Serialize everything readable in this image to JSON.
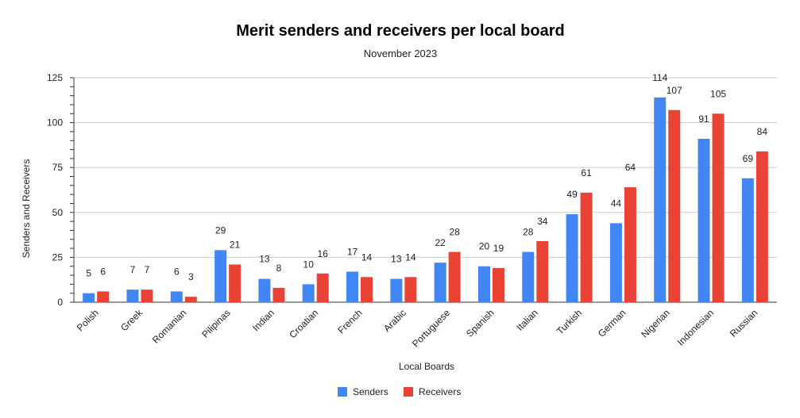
{
  "chart_data": {
    "type": "bar",
    "title": "Merit senders and receivers per local board",
    "subtitle": "November 2023",
    "xlabel": "Local Boards",
    "ylabel": "Senders and Receivers",
    "ylim": [
      0,
      125
    ],
    "yticks": [
      0,
      25,
      50,
      75,
      100,
      125
    ],
    "grid": true,
    "legend_position": "bottom",
    "categories": [
      "Polish",
      "Greek",
      "Romanian",
      "Pilipinas",
      "Indian",
      "Croatian",
      "French",
      "Arabic",
      "Portuguese",
      "Spanish",
      "Italian",
      "Turkish",
      "German",
      "Nigerian",
      "Indonesian",
      "Russian"
    ],
    "series": [
      {
        "name": "Senders",
        "color": "#4285f4",
        "values": [
          5,
          7,
          6,
          29,
          13,
          10,
          17,
          13,
          22,
          20,
          28,
          49,
          44,
          114,
          91,
          69
        ]
      },
      {
        "name": "Receivers",
        "color": "#ea4335",
        "values": [
          6,
          7,
          3,
          21,
          8,
          16,
          14,
          14,
          28,
          19,
          34,
          61,
          64,
          107,
          105,
          84
        ]
      }
    ]
  }
}
